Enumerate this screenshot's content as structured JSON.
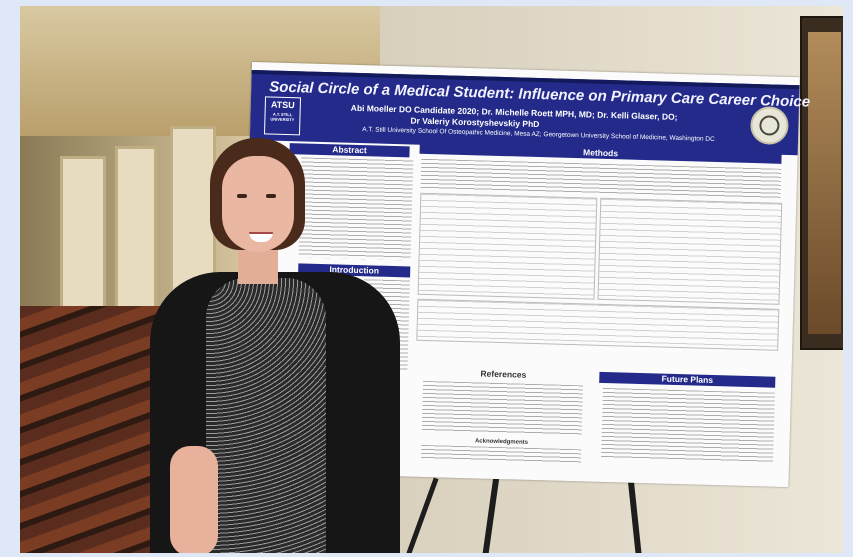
{
  "poster": {
    "title": "Social Circle of a Medical Student: Influence on Primary Care Career Choice",
    "authors_line1": "Abi Moeller DO Candidate 2020; Dr. Michelle Roett MPH, MD; Dr. Kelli Glaser, DO;",
    "authors_line2": "Dr Valeriy Korostyshevskiy PhD",
    "affiliation": "A.T. Still University School Of Osteopathic Medicine, Mesa AZ; Georgetown University School of Medicine, Washington DC",
    "logo_text": "ATSU",
    "logo_subtext": "A.T. STILL UNIVERSITY",
    "sections": {
      "abstract": "Abstract",
      "introduction": "Introduction",
      "methods": "Methods",
      "references": "References",
      "future_plans": "Future Plans",
      "acknowledgments": "Acknowledgments"
    }
  },
  "colors": {
    "poster_banner": "#232a8a",
    "page_border": "#dfe8f6"
  }
}
